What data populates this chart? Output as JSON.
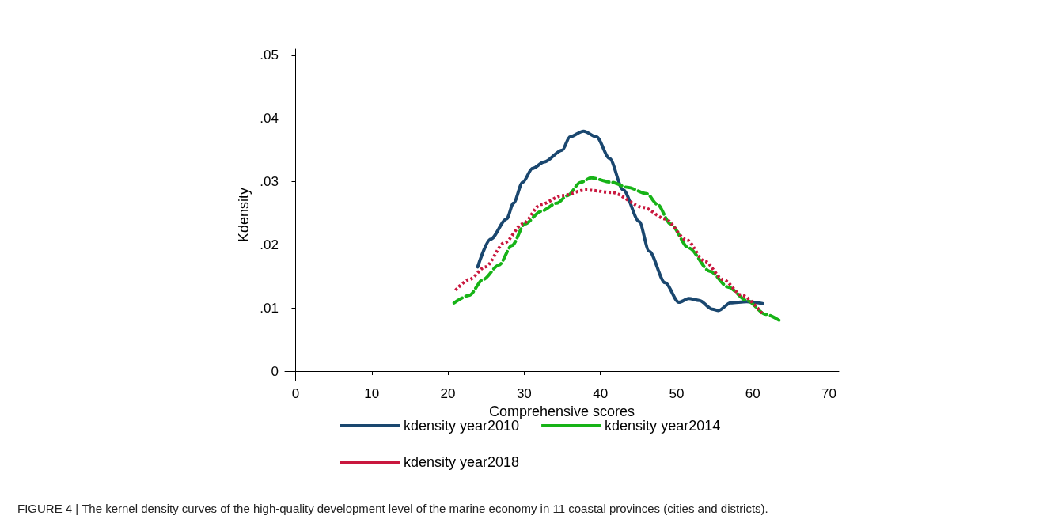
{
  "chart_data": {
    "type": "line",
    "xlabel": "Comprehensive scores",
    "ylabel": "Kdensity",
    "xlim": [
      -1.4,
      71.3
    ],
    "xticks": [
      0,
      10,
      20,
      30,
      40,
      50,
      60,
      70
    ],
    "ylim": [
      -0.0015,
      0.051
    ],
    "yticks": [
      0,
      {
        "value": 0.01,
        "label": ".01"
      },
      {
        "value": 0.02,
        "label": ".02"
      },
      {
        "value": 0.03,
        "label": ".03"
      },
      {
        "value": 0.04,
        "label": ".04"
      },
      {
        "value": 0.05,
        "label": ".05"
      }
    ],
    "grid": false,
    "marker": "none",
    "legend": "bottom",
    "annotations": [
      "FIGURE 4 | The kernel density curves of the high-quality development level of the marine economy in 11 coastal provinces (cities and districts)."
    ],
    "series": [
      {
        "name": "kdensity year2010",
        "color": "#1a476f",
        "line_style": "solid",
        "x": [
          23.9,
          25.6,
          27.7,
          28.6,
          29.8,
          31.1,
          32.6,
          35.0,
          36.0,
          37.8,
          39.5,
          41.2,
          43.0,
          45.1,
          46.4,
          48.5,
          50.3,
          51.6,
          53.0,
          54.7,
          55.5,
          57.1,
          59.2,
          61.3
        ],
        "values": [
          0.0165,
          0.0209,
          0.0241,
          0.0266,
          0.0299,
          0.0321,
          0.0331,
          0.035,
          0.0371,
          0.038,
          0.0371,
          0.0337,
          0.0287,
          0.0237,
          0.019,
          0.014,
          0.0109,
          0.0115,
          0.0112,
          0.0098,
          0.0096,
          0.0108,
          0.011,
          0.0107
        ]
      },
      {
        "name": "kdensity year2014",
        "color": "#17b317",
        "line_style": "dashed",
        "x": [
          20.8,
          22.8,
          24.6,
          26.7,
          28.4,
          30.1,
          32.2,
          34.3,
          35.7,
          37.4,
          38.8,
          41.5,
          43.6,
          46.1,
          47.5,
          49.2,
          51.6,
          54.4,
          56.8,
          59.2,
          61.7,
          63.8
        ],
        "values": [
          0.0108,
          0.012,
          0.0145,
          0.0168,
          0.0199,
          0.0233,
          0.0253,
          0.0266,
          0.0278,
          0.0299,
          0.0306,
          0.0299,
          0.0291,
          0.0281,
          0.0264,
          0.0233,
          0.0195,
          0.0158,
          0.0133,
          0.0112,
          0.009,
          0.0078
        ]
      },
      {
        "name": "kdensity year2018",
        "color": "#c9173e",
        "line_style": "dotted",
        "x": [
          21.0,
          22.8,
          24.9,
          27.4,
          29.8,
          32.2,
          35.0,
          38.1,
          41.5,
          45.7,
          48.5,
          51.3,
          53.7,
          56.1,
          58.6,
          61.3
        ],
        "values": [
          0.0128,
          0.0145,
          0.0165,
          0.0203,
          0.0233,
          0.0264,
          0.0278,
          0.0287,
          0.0283,
          0.0259,
          0.0241,
          0.0208,
          0.0174,
          0.0145,
          0.012,
          0.009
        ]
      }
    ]
  }
}
